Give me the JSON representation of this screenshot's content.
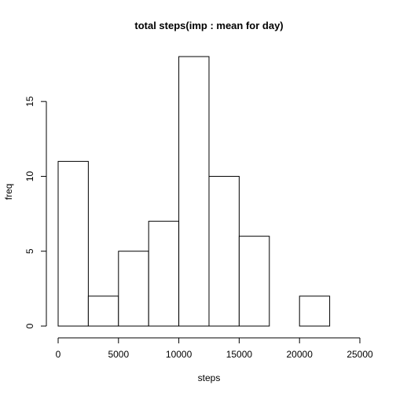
{
  "chart_data": {
    "type": "bar",
    "title": "total steps(imp : mean for day)",
    "xlabel": "steps",
    "ylabel": "freq",
    "bins": [
      {
        "from": 0,
        "to": 2500,
        "count": 11
      },
      {
        "from": 2500,
        "to": 5000,
        "count": 2
      },
      {
        "from": 5000,
        "to": 7500,
        "count": 5
      },
      {
        "from": 7500,
        "to": 10000,
        "count": 7
      },
      {
        "from": 10000,
        "to": 12500,
        "count": 18
      },
      {
        "from": 12500,
        "to": 15000,
        "count": 10
      },
      {
        "from": 15000,
        "to": 17500,
        "count": 6
      },
      {
        "from": 17500,
        "to": 20000,
        "count": 0
      },
      {
        "from": 20000,
        "to": 22500,
        "count": 2
      },
      {
        "from": 22500,
        "to": 25000,
        "count": 0
      }
    ],
    "xlim": [
      0,
      25000
    ],
    "ylim": [
      0,
      18
    ],
    "x_ticks": [
      "0",
      "5000",
      "10000",
      "15000",
      "20000",
      "25000"
    ],
    "y_ticks": [
      "0",
      "5",
      "10",
      "15"
    ],
    "grid": false,
    "legend": "none"
  }
}
